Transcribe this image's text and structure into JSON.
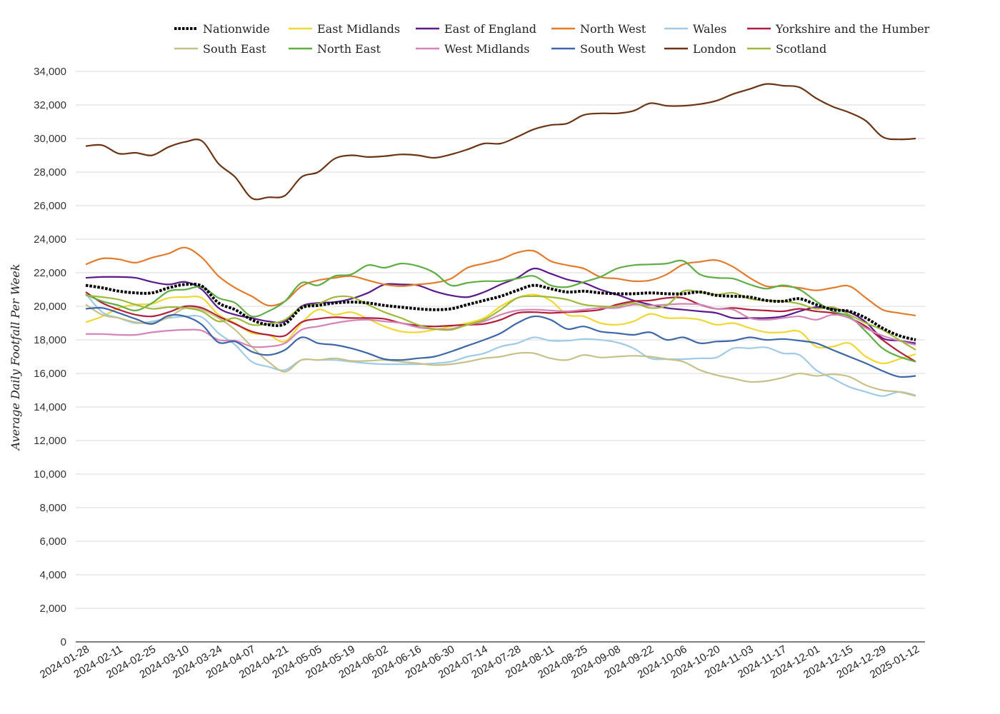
{
  "chart_data": {
    "type": "line",
    "title": "",
    "xlabel": "",
    "ylabel": "Average Daily Footfall Per Week",
    "ylim": [
      0,
      34000
    ],
    "yticks": [
      0,
      2000,
      4000,
      6000,
      8000,
      10000,
      12000,
      14000,
      16000,
      18000,
      20000,
      22000,
      24000,
      26000,
      28000,
      30000,
      32000,
      34000
    ],
    "ytick_labels": [
      "0",
      "2,000",
      "4,000",
      "6,000",
      "8,000",
      "10,000",
      "12,000",
      "14,000",
      "16,000",
      "18,000",
      "20,000",
      "22,000",
      "24,000",
      "26,000",
      "28,000",
      "30,000",
      "32,000",
      "34,000"
    ],
    "x_tick_labels": [
      "2024-01-28",
      "2024-02-11",
      "2024-02-25",
      "2024-03-10",
      "2024-03-24",
      "2024-04-07",
      "2024-04-21",
      "2024-05-05",
      "2024-05-19",
      "2024-06-02",
      "2024-06-16",
      "2024-06-30",
      "2024-07-14",
      "2024-07-28",
      "2024-08-11",
      "2024-08-25",
      "2024-09-08",
      "2024-09-22",
      "2024-10-06",
      "2024-10-20",
      "2024-11-03",
      "2024-11-17",
      "2024-12-01",
      "2024-12-15",
      "2024-12-29",
      "2025-01-12"
    ],
    "x": [
      "2024-01-28",
      "2024-02-04",
      "2024-02-11",
      "2024-02-18",
      "2024-02-25",
      "2024-03-03",
      "2024-03-10",
      "2024-03-17",
      "2024-03-24",
      "2024-03-31",
      "2024-04-07",
      "2024-04-14",
      "2024-04-21",
      "2024-04-28",
      "2024-05-05",
      "2024-05-12",
      "2024-05-19",
      "2024-05-26",
      "2024-06-02",
      "2024-06-09",
      "2024-06-16",
      "2024-06-23",
      "2024-06-30",
      "2024-07-07",
      "2024-07-14",
      "2024-07-21",
      "2024-07-28",
      "2024-08-04",
      "2024-08-11",
      "2024-08-18",
      "2024-08-25",
      "2024-09-01",
      "2024-09-08",
      "2024-09-15",
      "2024-09-22",
      "2024-09-29",
      "2024-10-06",
      "2024-10-13",
      "2024-10-20",
      "2024-10-27",
      "2024-11-03",
      "2024-11-10",
      "2024-11-17",
      "2024-11-24",
      "2024-12-01",
      "2024-12-08",
      "2024-12-15",
      "2024-12-22",
      "2024-12-29",
      "2025-01-05",
      "2025-01-12"
    ],
    "grid": true,
    "legend": "top",
    "series": [
      {
        "name": "Nationwide",
        "color": "#000000",
        "dashed": true,
        "values": [
          21250,
          21100,
          20900,
          20800,
          20800,
          21100,
          21300,
          21200,
          20200,
          19800,
          19200,
          18900,
          18950,
          19900,
          20050,
          20200,
          20250,
          20200,
          20050,
          19950,
          19850,
          19800,
          19850,
          20100,
          20350,
          20600,
          20950,
          21250,
          21050,
          20850,
          20900,
          20800,
          20750,
          20750,
          20800,
          20750,
          20750,
          20850,
          20650,
          20600,
          20550,
          20350,
          20300,
          20450,
          20100,
          19800,
          19700,
          19300,
          18700,
          18250,
          18000
        ]
      },
      {
        "name": "East Midlands",
        "color": "#f0d732",
        "dashed": false,
        "values": [
          19050,
          19400,
          19900,
          20100,
          20150,
          20500,
          20550,
          20500,
          19500,
          19000,
          18400,
          18300,
          17900,
          19000,
          19800,
          19500,
          19650,
          19250,
          18800,
          18500,
          18450,
          18600,
          18800,
          19000,
          19300,
          20000,
          20500,
          20700,
          20350,
          19500,
          19400,
          19000,
          18900,
          19100,
          19550,
          19300,
          19300,
          19200,
          18900,
          19000,
          18700,
          18450,
          18450,
          18500,
          17600,
          17600,
          17800,
          17000,
          16600,
          16850,
          17150
        ]
      },
      {
        "name": "East of England",
        "color": "#5b1a8c",
        "dashed": false,
        "values": [
          21700,
          21750,
          21750,
          21700,
          21450,
          21300,
          21450,
          21000,
          19900,
          19500,
          19300,
          19100,
          19100,
          20000,
          20200,
          20250,
          20450,
          20800,
          21300,
          21300,
          21250,
          20900,
          20650,
          20550,
          20850,
          21300,
          21700,
          22250,
          21950,
          21600,
          21400,
          21000,
          20700,
          20350,
          20100,
          19900,
          19800,
          19700,
          19600,
          19300,
          19300,
          19300,
          19400,
          19700,
          19950,
          19850,
          19650,
          19050,
          18100,
          17950,
          17800
        ]
      },
      {
        "name": "North West",
        "color": "#e37b2c",
        "dashed": false,
        "values": [
          22500,
          22850,
          22800,
          22600,
          22900,
          23150,
          23500,
          22900,
          21800,
          21100,
          20600,
          20050,
          20300,
          21200,
          21550,
          21700,
          21800,
          21550,
          21300,
          21200,
          21300,
          21400,
          21650,
          22300,
          22550,
          22800,
          23200,
          23300,
          22700,
          22450,
          22250,
          21750,
          21650,
          21500,
          21550,
          21900,
          22500,
          22650,
          22750,
          22350,
          21700,
          21200,
          21200,
          21100,
          20950,
          21100,
          21200,
          20500,
          19800,
          19600,
          19450
        ]
      },
      {
        "name": "Wales",
        "color": "#9fcbe6",
        "dashed": false,
        "values": [
          20750,
          19650,
          19300,
          19000,
          19100,
          19300,
          19400,
          19350,
          18400,
          17700,
          16700,
          16400,
          16200,
          16800,
          16800,
          16800,
          16700,
          16600,
          16550,
          16550,
          16550,
          16600,
          16700,
          17000,
          17200,
          17600,
          17800,
          18150,
          17950,
          17950,
          18050,
          18000,
          17850,
          17500,
          16900,
          16850,
          16850,
          16900,
          16950,
          17500,
          17500,
          17550,
          17200,
          17100,
          16200,
          15700,
          15200,
          14900,
          14650,
          14900,
          14700
        ]
      },
      {
        "name": "Yorkshire and the Humber",
        "color": "#b11d3a",
        "dashed": false,
        "values": [
          20850,
          20200,
          19800,
          19500,
          19400,
          19650,
          20000,
          19900,
          19400,
          18950,
          18500,
          18300,
          18250,
          19050,
          19250,
          19350,
          19300,
          19300,
          19250,
          19000,
          18850,
          18800,
          18850,
          18900,
          18950,
          19200,
          19600,
          19650,
          19600,
          19650,
          19700,
          19800,
          20100,
          20300,
          20350,
          20500,
          20500,
          20100,
          19850,
          19900,
          19800,
          19750,
          19700,
          19850,
          19700,
          19600,
          19300,
          18800,
          18000,
          17300,
          16700
        ]
      },
      {
        "name": "South East",
        "color": "#c5c189",
        "dashed": false,
        "values": [
          20100,
          19500,
          19300,
          19050,
          19000,
          19350,
          19900,
          19800,
          19300,
          18600,
          17600,
          16700,
          16100,
          16800,
          16800,
          16900,
          16750,
          16750,
          16800,
          16700,
          16600,
          16500,
          16550,
          16700,
          16900,
          17000,
          17200,
          17200,
          16900,
          16800,
          17100,
          16950,
          17000,
          17050,
          17000,
          16850,
          16700,
          16200,
          15900,
          15700,
          15500,
          15550,
          15750,
          16000,
          15850,
          15950,
          15800,
          15300,
          15000,
          14900,
          14650
        ]
      },
      {
        "name": "North East",
        "color": "#5fae44",
        "dashed": false,
        "values": [
          20700,
          20300,
          20050,
          19750,
          20200,
          20900,
          21000,
          21150,
          20500,
          20200,
          19400,
          19700,
          20300,
          21400,
          21250,
          21800,
          21900,
          22450,
          22300,
          22550,
          22400,
          22000,
          21250,
          21400,
          21500,
          21500,
          21650,
          21800,
          21250,
          21150,
          21450,
          21750,
          22250,
          22450,
          22500,
          22550,
          22700,
          21900,
          21700,
          21650,
          21300,
          21050,
          21250,
          21000,
          20300,
          19700,
          19400,
          18500,
          17500,
          17000,
          16700
        ]
      },
      {
        "name": "West Midlands",
        "color": "#d485b8",
        "dashed": false,
        "values": [
          18350,
          18350,
          18300,
          18300,
          18450,
          18550,
          18600,
          18550,
          18000,
          17950,
          17600,
          17600,
          17800,
          18600,
          18800,
          19000,
          19150,
          19200,
          19100,
          19000,
          18750,
          18650,
          18650,
          18900,
          19100,
          19500,
          19750,
          19800,
          19750,
          19700,
          19800,
          19900,
          19900,
          20100,
          20050,
          20100,
          20150,
          20100,
          19850,
          19800,
          19300,
          19200,
          19300,
          19400,
          19200,
          19500,
          19300,
          18700,
          18250,
          17950,
          17700
        ]
      },
      {
        "name": "South West",
        "color": "#3d67a8",
        "dashed": false,
        "values": [
          19850,
          19900,
          19600,
          19250,
          18950,
          19450,
          19400,
          18900,
          17850,
          17900,
          17300,
          17100,
          17400,
          18150,
          17800,
          17700,
          17500,
          17200,
          16850,
          16800,
          16900,
          17000,
          17300,
          17650,
          18000,
          18400,
          19000,
          19400,
          19200,
          18650,
          18800,
          18500,
          18400,
          18300,
          18450,
          18000,
          18150,
          17800,
          17900,
          17950,
          18150,
          18000,
          18050,
          17950,
          17800,
          17400,
          17000,
          16600,
          16150,
          15800,
          15850
        ]
      },
      {
        "name": "London",
        "color": "#6b3514",
        "dashed": false,
        "values": [
          29550,
          29600,
          29100,
          29150,
          29000,
          29500,
          29800,
          29850,
          28500,
          27700,
          26450,
          26500,
          26600,
          27700,
          28000,
          28800,
          29000,
          28900,
          28950,
          29050,
          29000,
          28850,
          29050,
          29350,
          29700,
          29700,
          30100,
          30550,
          30800,
          30900,
          31400,
          31500,
          31500,
          31650,
          32100,
          31950,
          31950,
          32050,
          32250,
          32650,
          32950,
          33250,
          33150,
          33050,
          32400,
          31900,
          31550,
          31050,
          30100,
          29950,
          30000
        ]
      },
      {
        "name": "Scotland",
        "color": "#9fba3a",
        "dashed": false,
        "values": [
          20650,
          20550,
          20400,
          20100,
          19850,
          19950,
          19900,
          19700,
          19100,
          19300,
          18900,
          18950,
          19200,
          19950,
          20150,
          20550,
          20550,
          20100,
          19650,
          19300,
          18900,
          18650,
          18600,
          18900,
          19200,
          19800,
          20500,
          20600,
          20550,
          20400,
          20100,
          20000,
          20000,
          20200,
          19900,
          20050,
          20900,
          20850,
          20700,
          20800,
          20450,
          20350,
          20300,
          20150,
          19850,
          19950,
          19500,
          19000,
          18600,
          18000,
          17400
        ]
      }
    ]
  }
}
